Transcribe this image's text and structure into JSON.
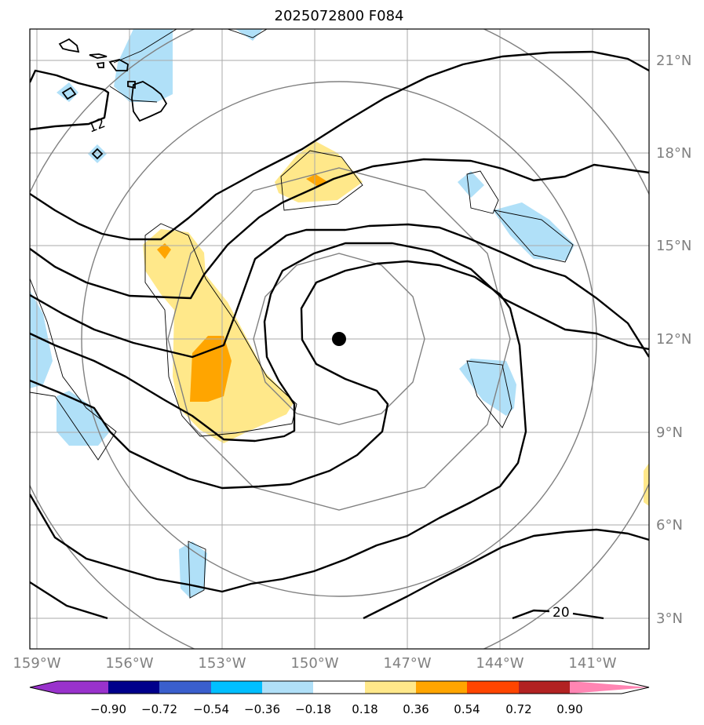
{
  "title": "2025072800 F084",
  "lon_labels": [
    "159°W",
    "156°W",
    "153°W",
    "150°W",
    "147°W",
    "144°W",
    "141°W"
  ],
  "lat_labels": [
    "21°N",
    "18°N",
    "15°N",
    "12°N",
    "9°N",
    "6°N",
    "3°N"
  ],
  "contour_labels": [
    "12",
    "20"
  ],
  "colorbar": {
    "ticks": [
      "−0.90",
      "−0.72",
      "−0.54",
      "−0.36",
      "−0.18",
      "0.18",
      "0.36",
      "0.54",
      "0.72",
      "0.90"
    ],
    "colors": [
      "#9932cc",
      "#00008b",
      "#3a5fcd",
      "#00bfff",
      "#b0e0f8",
      "#ffffff",
      "#ffe88a",
      "#ffa500",
      "#ff4500",
      "#b22222",
      "#ff85b3"
    ]
  },
  "storm_center": {
    "lon": -149.2,
    "lat": 12.0
  },
  "colors": {
    "grid": "#aaaaaa",
    "range_rings": "#808080",
    "contour": "#000000",
    "coast": "#000000",
    "tick_labels": "#808080"
  }
}
